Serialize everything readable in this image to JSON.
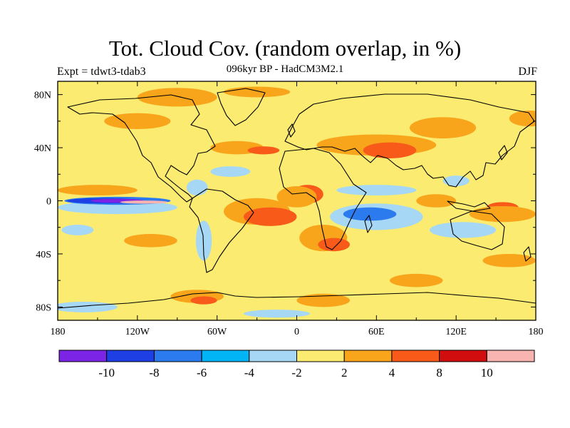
{
  "title": "Tot. Cloud Cov. (random overlap, in %)",
  "subtitle": "096kyr BP - HadCM3M2.1",
  "left_label": "Expt = tdwt3-tdab3",
  "right_label": "DJF",
  "lat_ticks": [
    "80N",
    "40N",
    "0",
    "40S",
    "80S"
  ],
  "lat_values": [
    80,
    40,
    0,
    -40,
    -80
  ],
  "lon_ticks": [
    "180",
    "120W",
    "60W",
    "0",
    "60E",
    "120E",
    "180"
  ],
  "lon_values": [
    -180,
    -120,
    -60,
    0,
    60,
    120,
    180
  ],
  "colorbar": {
    "colors": [
      "#7b24e6",
      "#1d3fe4",
      "#2b7bef",
      "#00b4f6",
      "#a6d8f5",
      "#fbeb70",
      "#f8a51c",
      "#f85a1a",
      "#d10d0d",
      "#f7b4b0"
    ],
    "labels": [
      "-10",
      "-8",
      "-6",
      "-4",
      "-2",
      "2",
      "4",
      "8",
      "10"
    ]
  },
  "anomaly_regions": [
    {
      "level": "orange",
      "lon": -90,
      "lat": 78,
      "rlon": 30,
      "rlat": 7
    },
    {
      "level": "orange",
      "lon": -30,
      "lat": 82,
      "rlon": 25,
      "rlat": 4
    },
    {
      "level": "orange",
      "lon": 60,
      "lat": 42,
      "rlon": 45,
      "rlat": 8
    },
    {
      "level": "red",
      "lon": 70,
      "lat": 38,
      "rlon": 20,
      "rlat": 6
    },
    {
      "level": "orange",
      "lon": 110,
      "lat": 55,
      "rlon": 25,
      "rlat": 8
    },
    {
      "level": "orange",
      "lon": -45,
      "lat": 40,
      "rlon": 20,
      "rlat": 5
    },
    {
      "level": "red",
      "lon": -25,
      "lat": 38,
      "rlon": 12,
      "rlat": 3
    },
    {
      "level": "orange",
      "lon": -120,
      "lat": 60,
      "rlon": 25,
      "rlat": 6
    },
    {
      "level": "orange",
      "lon": 175,
      "lat": 62,
      "rlon": 15,
      "rlat": 6
    },
    {
      "level": "orange",
      "lon": -150,
      "lat": 8,
      "rlon": 30,
      "rlat": 4
    },
    {
      "level": "orange",
      "lon": -30,
      "lat": -8,
      "rlon": 25,
      "rlat": 10
    },
    {
      "level": "red",
      "lon": -20,
      "lat": -12,
      "rlon": 20,
      "rlat": 7
    },
    {
      "level": "red",
      "lon": 8,
      "lat": 5,
      "rlon": 12,
      "rlat": 7
    },
    {
      "level": "orange",
      "lon": 0,
      "lat": 3,
      "rlon": 15,
      "rlat": 8
    },
    {
      "level": "orange",
      "lon": 20,
      "lat": -28,
      "rlon": 18,
      "rlat": 10
    },
    {
      "level": "red",
      "lon": 28,
      "lat": -33,
      "rlon": 12,
      "rlat": 5
    },
    {
      "level": "orange",
      "lon": 105,
      "lat": 0,
      "rlon": 15,
      "rlat": 5
    },
    {
      "level": "red",
      "lon": 155,
      "lat": -5,
      "rlon": 12,
      "rlat": 4
    },
    {
      "level": "orange",
      "lon": 155,
      "lat": -10,
      "rlon": 25,
      "rlat": 6
    },
    {
      "level": "orange",
      "lon": -110,
      "lat": -30,
      "rlon": 20,
      "rlat": 5
    },
    {
      "level": "orange",
      "lon": -75,
      "lat": -72,
      "rlon": 20,
      "rlat": 5
    },
    {
      "level": "red",
      "lon": -70,
      "lat": -75,
      "rlon": 10,
      "rlat": 3
    },
    {
      "level": "orange",
      "lon": 20,
      "lat": -75,
      "rlon": 20,
      "rlat": 5
    },
    {
      "level": "orange",
      "lon": 90,
      "lat": -60,
      "rlon": 20,
      "rlat": 5
    },
    {
      "level": "orange",
      "lon": 160,
      "lat": -45,
      "rlon": 20,
      "rlat": 5
    },
    {
      "level": "light-blue",
      "lon": -135,
      "lat": -5,
      "rlon": 45,
      "rlat": 5
    },
    {
      "level": "blue",
      "lon": -135,
      "lat": 0,
      "rlon": 40,
      "rlat": 3
    },
    {
      "level": "dark-blue",
      "lon": -145,
      "lat": 0,
      "rlon": 28,
      "rlat": 2
    },
    {
      "level": "purple",
      "lon": -135,
      "lat": 0,
      "rlon": 20,
      "rlat": 1.5
    },
    {
      "level": "pink",
      "lon": -115,
      "lat": -1,
      "rlon": 18,
      "rlat": 1.2
    },
    {
      "level": "light-blue",
      "lon": -70,
      "lat": -30,
      "rlon": 6,
      "rlat": 15
    },
    {
      "level": "light-blue",
      "lon": -75,
      "lat": 10,
      "rlon": 8,
      "rlat": 6
    },
    {
      "level": "light-blue",
      "lon": -50,
      "lat": 22,
      "rlon": 15,
      "rlat": 4
    },
    {
      "level": "light-blue",
      "lon": 60,
      "lat": -12,
      "rlon": 35,
      "rlat": 10
    },
    {
      "level": "blue",
      "lon": 55,
      "lat": -10,
      "rlon": 20,
      "rlat": 5
    },
    {
      "level": "light-blue",
      "lon": 125,
      "lat": -22,
      "rlon": 25,
      "rlat": 6
    },
    {
      "level": "light-blue",
      "lon": 60,
      "lat": 8,
      "rlon": 30,
      "rlat": 4
    },
    {
      "level": "light-blue",
      "lon": -165,
      "lat": -22,
      "rlon": 12,
      "rlat": 4
    },
    {
      "level": "light-blue",
      "lon": -160,
      "lat": -80,
      "rlon": 25,
      "rlat": 4
    },
    {
      "level": "light-blue",
      "lon": -15,
      "lat": -85,
      "rlon": 25,
      "rlat": 3
    },
    {
      "level": "light-blue",
      "lon": 120,
      "lat": 15,
      "rlon": 10,
      "rlat": 4
    }
  ]
}
